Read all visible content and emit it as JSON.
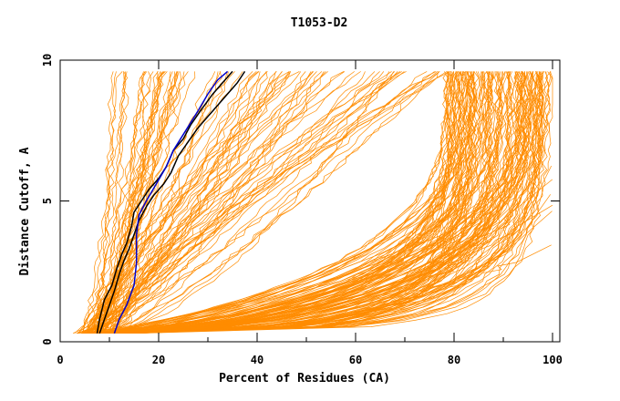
{
  "chart_data": {
    "type": "line",
    "title": "T1053-D2",
    "xlabel": "Percent of Residues (CA)",
    "ylabel": "Distance Cutoff, A",
    "xlim": [
      0,
      100
    ],
    "ylim": [
      0,
      10
    ],
    "x_ticks": [
      "0",
      "20",
      "40",
      "60",
      "80",
      "100"
    ],
    "y_ticks": [
      "0",
      "5",
      "10"
    ],
    "grid": false,
    "legend": "none",
    "colors": {
      "background_models": "#ff8c00",
      "highlight_black": "#000000",
      "highlight_blue": "#0000cc"
    },
    "series": [
      {
        "color": "black",
        "x": [
          7.5,
          8,
          9,
          10.5,
          11.5,
          12.5,
          13.5,
          14.5,
          15,
          16.5,
          18,
          20,
          21.5,
          23,
          25,
          26.5,
          28.5,
          31,
          33.5,
          35
        ],
        "y": [
          0.3,
          0.8,
          1.5,
          2.0,
          2.6,
          3.1,
          3.5,
          4.1,
          4.6,
          5.0,
          5.4,
          5.8,
          6.2,
          6.8,
          7.2,
          7.7,
          8.2,
          8.8,
          9.3,
          9.6
        ]
      },
      {
        "color": "black",
        "x": [
          8,
          9,
          10,
          11,
          12,
          13,
          14,
          15,
          16,
          17.5,
          19,
          21,
          22.5,
          24,
          26,
          28,
          30.5,
          33,
          36,
          37.5
        ],
        "y": [
          0.3,
          0.8,
          1.3,
          1.8,
          2.4,
          2.9,
          3.3,
          3.8,
          4.3,
          4.8,
          5.2,
          5.6,
          6.0,
          6.6,
          7.1,
          7.6,
          8.1,
          8.6,
          9.2,
          9.6
        ]
      },
      {
        "color": "blue",
        "x": [
          11,
          12,
          13.5,
          15,
          15.5,
          15.5,
          16,
          17.5,
          19.5,
          21.5,
          23,
          25.5,
          28,
          30,
          32,
          34
        ],
        "y": [
          0.3,
          0.8,
          1.3,
          2.0,
          2.8,
          3.8,
          4.5,
          5.0,
          5.6,
          6.2,
          6.8,
          7.5,
          8.2,
          8.8,
          9.3,
          9.6
        ]
      }
    ]
  }
}
